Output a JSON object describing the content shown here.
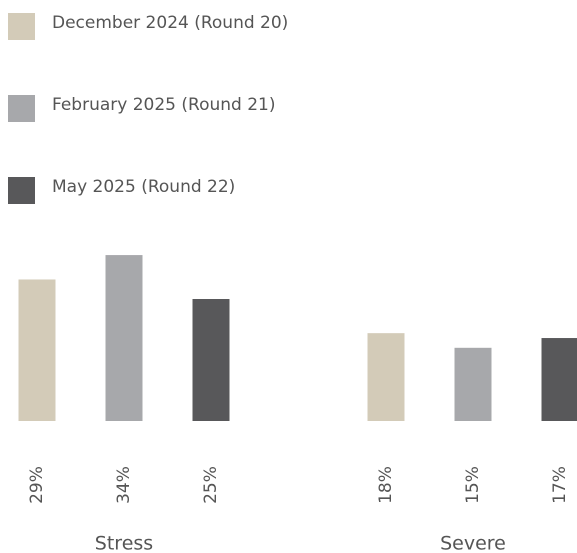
{
  "chart_data": {
    "type": "bar",
    "categories": [
      "Stress",
      "Severe"
    ],
    "series": [
      {
        "name": "December 2024 (Round 20)",
        "color": "#d3cbb8",
        "values": [
          29,
          18
        ],
        "value_labels": [
          "29%",
          "18%"
        ]
      },
      {
        "name": "February 2025 (Round 21)",
        "color": "#a7a8ab",
        "values": [
          34,
          15
        ],
        "value_labels": [
          "34%",
          "15%"
        ]
      },
      {
        "name": "May 2025 (Round 22)",
        "color": "#58585a",
        "values": [
          25,
          17
        ],
        "value_labels": [
          "25%",
          "17%"
        ]
      }
    ]
  }
}
